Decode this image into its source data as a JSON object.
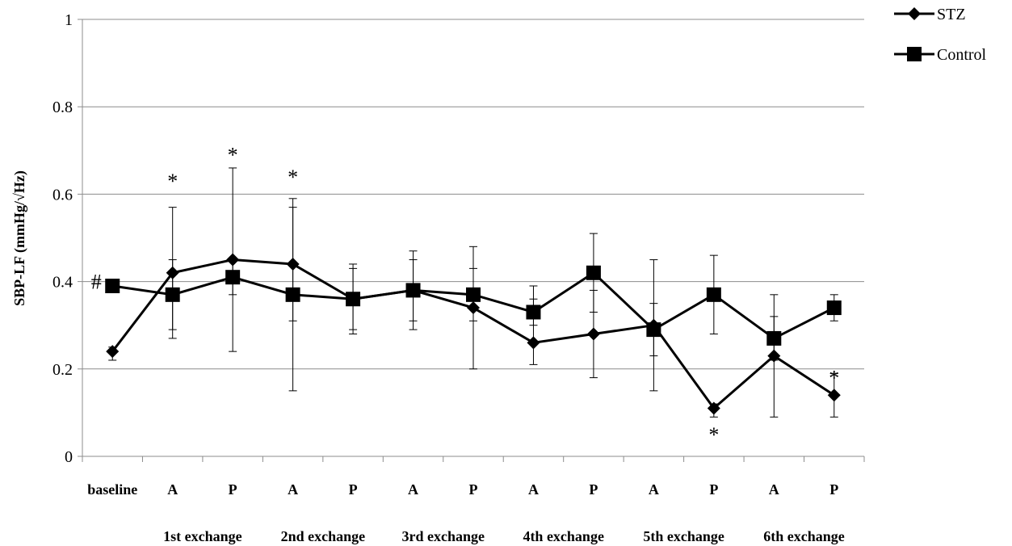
{
  "chart_data": {
    "type": "line",
    "title": "",
    "xlabel": "",
    "ylabel": "SBP-LF (mmHg/√Hz)",
    "ylim": [
      0,
      1
    ],
    "yticks": [
      "0",
      "0.2",
      "0.4",
      "0.6",
      "0.8",
      "1"
    ],
    "grid": "horizontal",
    "legend_position": "top-right",
    "categories": [
      "baseline",
      "A",
      "P",
      "A",
      "P",
      "A",
      "P",
      "A",
      "P",
      "A",
      "P",
      "A",
      "P"
    ],
    "groups": [
      {
        "label": "1st exchange",
        "from": 1,
        "to": 2
      },
      {
        "label": "2nd exchange",
        "from": 3,
        "to": 4
      },
      {
        "label": "3rd exchange",
        "from": 5,
        "to": 6
      },
      {
        "label": "4th exchange",
        "from": 7,
        "to": 8
      },
      {
        "label": "5th exchange",
        "from": 9,
        "to": 10
      },
      {
        "label": "6th exchange",
        "from": 11,
        "to": 12
      }
    ],
    "series": [
      {
        "name": "STZ",
        "marker": "diamond",
        "color": "#000000",
        "values": [
          0.24,
          0.42,
          0.45,
          0.44,
          0.36,
          0.38,
          0.34,
          0.26,
          0.28,
          0.3,
          0.11,
          0.23,
          0.14
        ],
        "err_low": [
          0.22,
          0.27,
          0.24,
          0.15,
          0.28,
          0.29,
          0.2,
          0.21,
          0.18,
          0.15,
          0.09,
          0.09,
          0.09
        ],
        "err_high": [
          0.25,
          0.57,
          0.66,
          0.59,
          0.44,
          0.47,
          0.48,
          0.39,
          0.38,
          0.45,
          0.12,
          0.37,
          0.19
        ]
      },
      {
        "name": "Control",
        "marker": "square",
        "color": "#000000",
        "values": [
          0.39,
          0.37,
          0.41,
          0.37,
          0.36,
          0.38,
          0.37,
          0.33,
          0.42,
          0.29,
          0.37,
          0.27,
          0.34
        ],
        "err_low": [
          0.38,
          0.29,
          0.37,
          0.31,
          0.29,
          0.31,
          0.31,
          0.3,
          0.33,
          0.23,
          0.28,
          0.22,
          0.31
        ],
        "err_high": [
          0.4,
          0.45,
          0.45,
          0.57,
          0.43,
          0.45,
          0.43,
          0.36,
          0.51,
          0.35,
          0.46,
          0.32,
          0.37
        ]
      }
    ],
    "annotations": [
      {
        "text": "*",
        "x": 1,
        "y": 0.63
      },
      {
        "text": "*",
        "x": 2,
        "y": 0.69
      },
      {
        "text": "*",
        "x": 3,
        "y": 0.64
      },
      {
        "text": "*",
        "x": 10,
        "y": 0.05
      },
      {
        "text": "*",
        "x": 12,
        "y": 0.18
      },
      {
        "text": "#",
        "x": 0,
        "y": 0.4
      }
    ]
  }
}
